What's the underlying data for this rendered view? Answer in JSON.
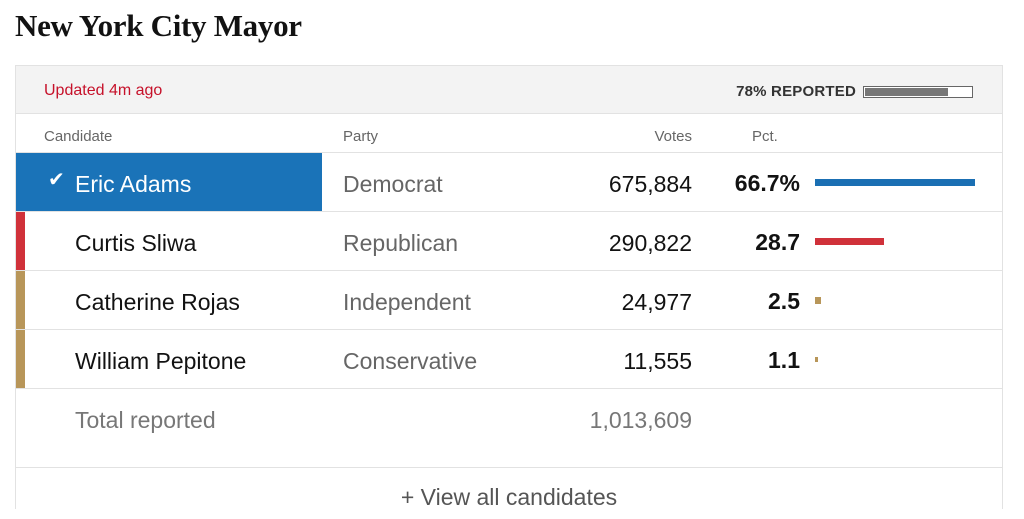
{
  "title": "New York City Mayor",
  "status": {
    "updated": "Updated 4m ago",
    "reported_label": "78% REPORTED",
    "reported_fraction": 0.78
  },
  "columns": {
    "candidate": "Candidate",
    "party": "Party",
    "votes": "Votes",
    "pct": "Pct."
  },
  "candidates": [
    {
      "name": "Eric Adams",
      "party": "Democrat",
      "votes": "675,884",
      "pct": "66.7%",
      "pct_value": 66.7,
      "color": "#1a6fb3",
      "winner": true
    },
    {
      "name": "Curtis Sliwa",
      "party": "Republican",
      "votes": "290,822",
      "pct": "28.7",
      "pct_value": 28.7,
      "color": "#d0313a",
      "winner": false
    },
    {
      "name": "Catherine Rojas",
      "party": "Independent",
      "votes": "24,977",
      "pct": "2.5",
      "pct_value": 2.5,
      "color": "#b89659",
      "winner": false
    },
    {
      "name": "William Pepitone",
      "party": "Conservative",
      "votes": "11,555",
      "pct": "1.1",
      "pct_value": 1.1,
      "color": "#b89659",
      "winner": false
    }
  ],
  "total": {
    "label": "Total reported",
    "votes": "1,013,609"
  },
  "view_all": "+ View all candidates",
  "icons": {
    "winner": "checkmark-icon"
  }
}
